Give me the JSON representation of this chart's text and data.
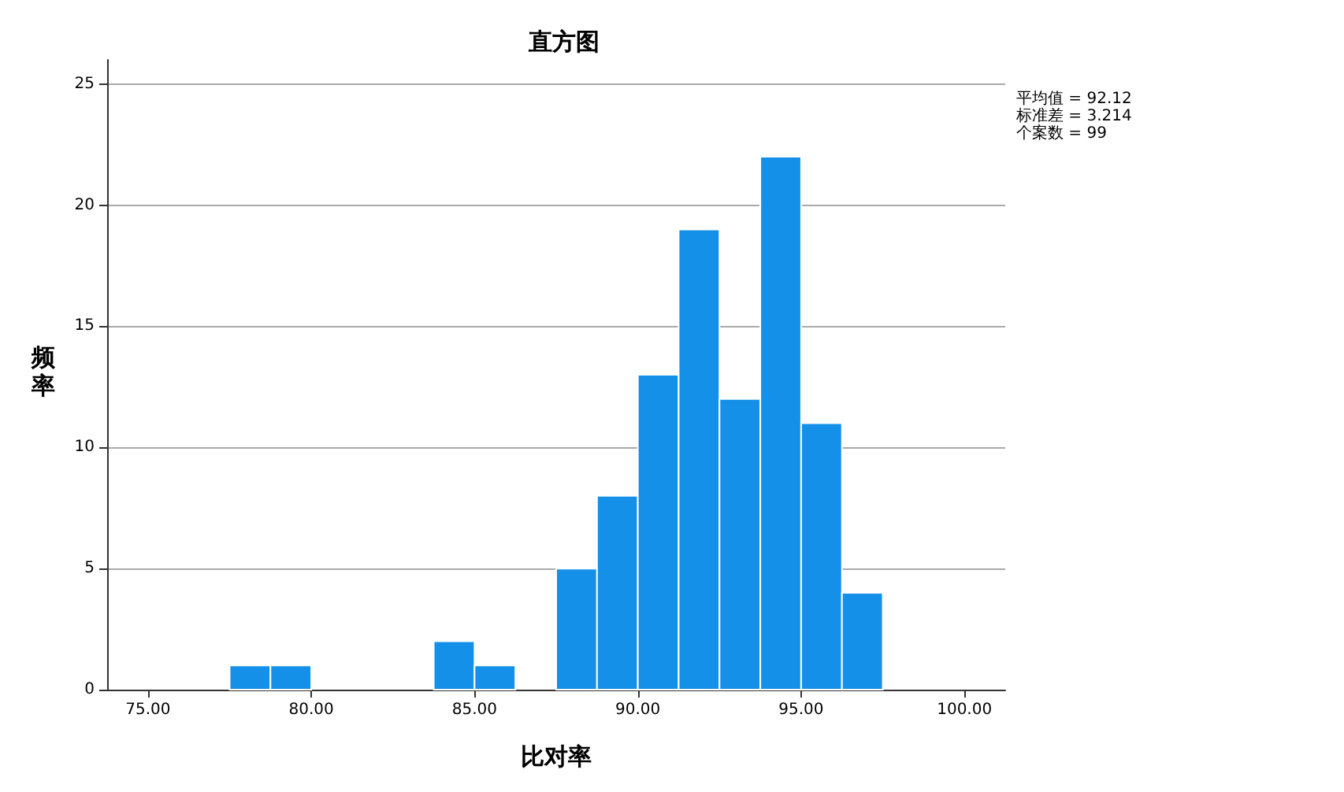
{
  "chart_data": {
    "type": "histogram",
    "title": "直方图",
    "xlabel": "比对率",
    "ylabel": "频率",
    "annotations": [
      "平均值 = 92.12",
      "标准差 = 3.214",
      "个案数 = 99"
    ],
    "bins": [
      77.5,
      78.75,
      80,
      81.25,
      82.5,
      83.75,
      85,
      86.25,
      87.5,
      88.75,
      90,
      91.25,
      92.5,
      93.75,
      95,
      96.25,
      97.5
    ],
    "values": [
      1,
      1,
      0,
      0,
      0,
      2,
      1,
      0,
      5,
      8,
      13,
      19,
      12,
      22,
      11,
      4
    ],
    "color": "#1590e8",
    "xlim": [
      73.75,
      101.25
    ],
    "xticks": [
      {
        "value": 75,
        "label": "75.00"
      },
      {
        "value": 80,
        "label": "80.00"
      },
      {
        "value": 85,
        "label": "85.00"
      },
      {
        "value": 90,
        "label": "90.00"
      },
      {
        "value": 95,
        "label": "95.00"
      },
      {
        "value": 100,
        "label": "100.00"
      }
    ],
    "ylim": [
      0,
      26
    ],
    "yticks": [
      0,
      5,
      10,
      15,
      20,
      25
    ],
    "grid": "y"
  }
}
